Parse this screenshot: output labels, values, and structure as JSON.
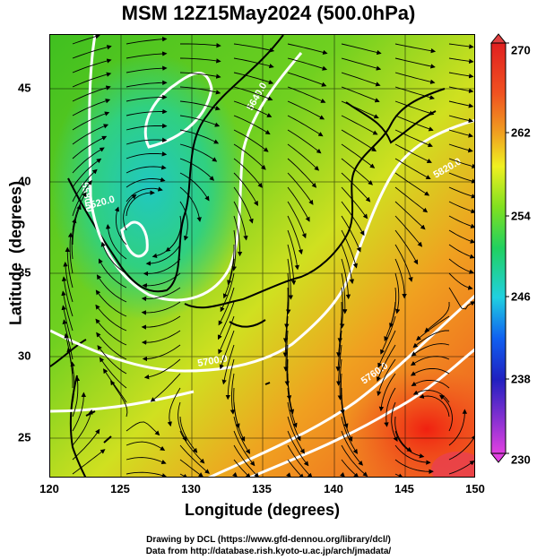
{
  "title": "MSM 12Z15May2024 (500.0hPa)",
  "x_axis": {
    "label": "Longitude (degrees)",
    "ticks": [
      "120",
      "125",
      "130",
      "135",
      "140",
      "145",
      "150"
    ],
    "range": [
      120,
      150
    ]
  },
  "y_axis": {
    "label": "Latitude  (degrees)",
    "ticks": [
      "25",
      "30",
      "35",
      "40",
      "45"
    ],
    "range": [
      22.5,
      47.5
    ]
  },
  "colorbar": {
    "ticks": [
      "270",
      "262",
      "254",
      "246",
      "238",
      "230"
    ],
    "range": [
      230,
      270
    ],
    "colors": [
      "#e040e0",
      "#2020c0",
      "#1060f0",
      "#20d0e0",
      "#20d060",
      "#80e020",
      "#f0f020",
      "#f0a020",
      "#f05020",
      "#e02020"
    ]
  },
  "contours": {
    "labels": [
      "5520.0",
      "5700.0",
      "5580.0",
      "5640.0",
      "5760.0",
      "5820.0"
    ]
  },
  "credits": {
    "line1": "Drawing by DCL (https://www.gfd-dennou.org/library/dcl/)",
    "line2": "Data from http://database.rish.kyoto-u.ac.jp/arch/jmadata/"
  }
}
